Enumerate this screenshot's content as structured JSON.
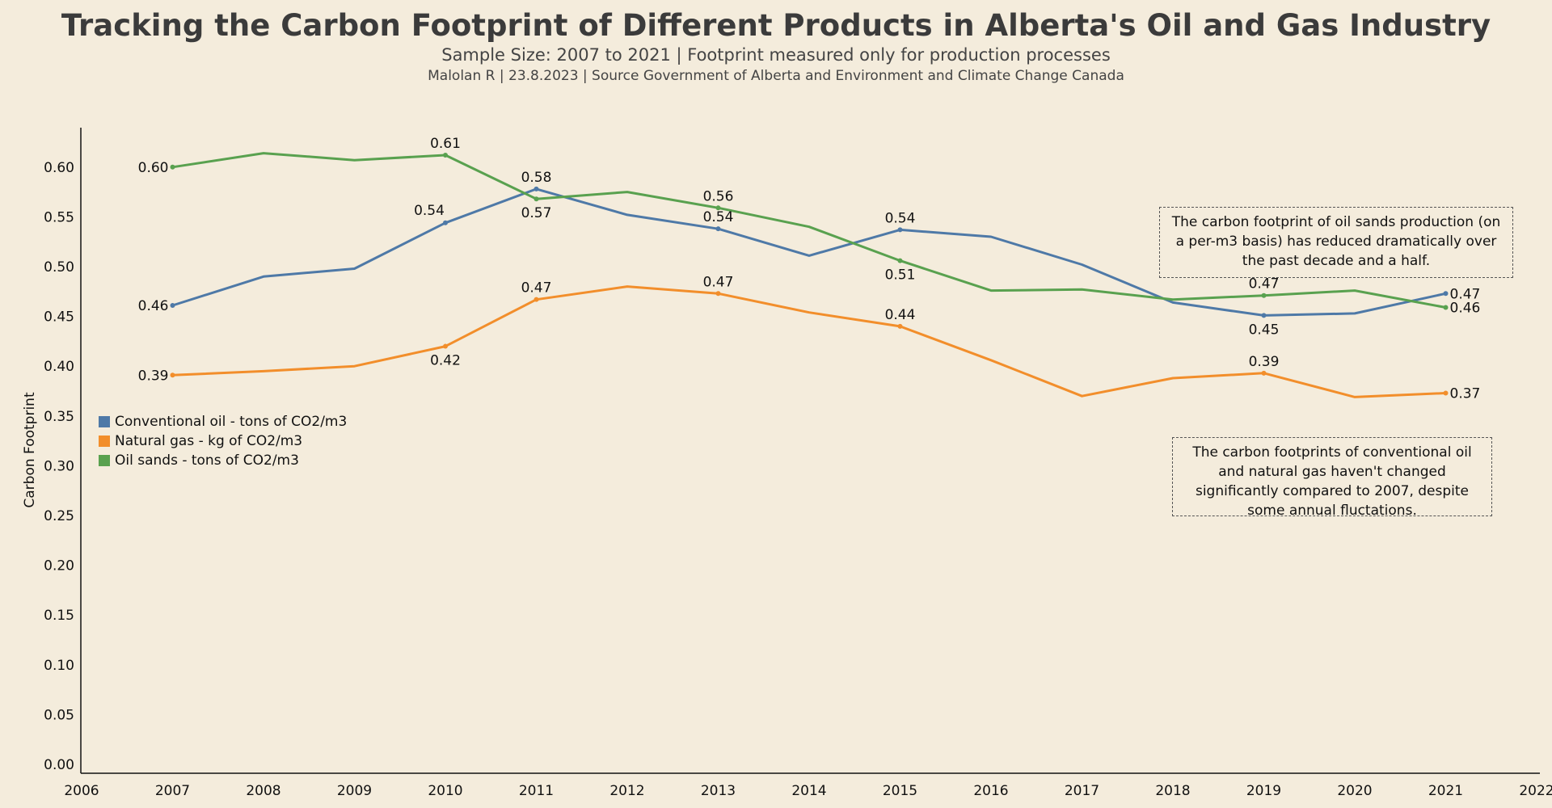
{
  "header": {
    "title": "Tracking the Carbon Footprint of Different Products in Alberta's Oil and Gas Industry",
    "subtitle": "Sample Size: 2007 to 2021 | Footprint measured only for production processes",
    "byline": "Malolan R | 23.8.2023 | Source Government of Alberta and Environment and Climate Change Canada"
  },
  "annotations": {
    "oil_sands_note": "The carbon footprint of oil sands production (on a per-m3 basis) has reduced dramatically over the past decade and a half.",
    "conventional_gas_note": "The carbon footprints of conventional oil and natural gas haven't changed significantly compared to 2007, despite some annual fluctations."
  },
  "chart_data": {
    "type": "line",
    "title": "Tracking the Carbon Footprint of Different Products in Alberta's Oil and Gas Industry",
    "ylabel": "Carbon Footprint",
    "xlabel": "",
    "xlim": [
      2006,
      2022
    ],
    "ylim": [
      0.0,
      0.65
    ],
    "x_ticks": [
      2006,
      2007,
      2008,
      2009,
      2010,
      2011,
      2012,
      2013,
      2014,
      2015,
      2016,
      2017,
      2018,
      2019,
      2020,
      2021,
      2022
    ],
    "y_ticks": [
      0.0,
      0.05,
      0.1,
      0.15,
      0.2,
      0.25,
      0.3,
      0.35,
      0.4,
      0.45,
      0.5,
      0.55,
      0.6
    ],
    "grid": false,
    "legend_position": "left",
    "x": [
      2007,
      2008,
      2009,
      2010,
      2011,
      2012,
      2013,
      2014,
      2015,
      2016,
      2017,
      2018,
      2019,
      2020,
      2021
    ],
    "series": [
      {
        "name": "Conventional oil - tons of CO2/m3",
        "color": "#4e79a7",
        "values": [
          0.461,
          0.49,
          0.498,
          0.544,
          0.578,
          0.552,
          0.538,
          0.511,
          0.537,
          0.53,
          0.502,
          0.464,
          0.451,
          0.453,
          0.473
        ]
      },
      {
        "name": "Natural gas - kg of CO2/m3",
        "color": "#f28e2b",
        "values": [
          0.391,
          0.395,
          0.4,
          0.42,
          0.467,
          0.48,
          0.473,
          0.454,
          0.44,
          0.406,
          0.37,
          0.388,
          0.393,
          0.369,
          0.373
        ]
      },
      {
        "name": "Oil sands - tons of CO2/m3",
        "color": "#59a14f",
        "values": [
          0.6,
          0.614,
          0.607,
          0.612,
          0.568,
          0.575,
          0.559,
          0.54,
          0.506,
          0.476,
          0.477,
          0.467,
          0.471,
          0.476,
          0.459
        ]
      }
    ],
    "data_labels": [
      {
        "series": 0,
        "x": 2007,
        "text": "0.46",
        "pos": "left"
      },
      {
        "series": 0,
        "x": 2010,
        "text": "0.54",
        "pos": "above-left"
      },
      {
        "series": 0,
        "x": 2011,
        "text": "0.58",
        "pos": "above"
      },
      {
        "series": 0,
        "x": 2013,
        "text": "0.54",
        "pos": "above"
      },
      {
        "series": 0,
        "x": 2015,
        "text": "0.54",
        "pos": "above"
      },
      {
        "series": 0,
        "x": 2019,
        "text": "0.45",
        "pos": "below"
      },
      {
        "series": 0,
        "x": 2021,
        "text": "0.47",
        "pos": "right"
      },
      {
        "series": 1,
        "x": 2007,
        "text": "0.39",
        "pos": "left"
      },
      {
        "series": 1,
        "x": 2010,
        "text": "0.42",
        "pos": "below"
      },
      {
        "series": 1,
        "x": 2011,
        "text": "0.47",
        "pos": "above"
      },
      {
        "series": 1,
        "x": 2013,
        "text": "0.47",
        "pos": "above"
      },
      {
        "series": 1,
        "x": 2015,
        "text": "0.44",
        "pos": "above"
      },
      {
        "series": 1,
        "x": 2019,
        "text": "0.39",
        "pos": "above"
      },
      {
        "series": 1,
        "x": 2021,
        "text": "0.37",
        "pos": "right"
      },
      {
        "series": 2,
        "x": 2007,
        "text": "0.60",
        "pos": "left"
      },
      {
        "series": 2,
        "x": 2010,
        "text": "0.61",
        "pos": "above"
      },
      {
        "series": 2,
        "x": 2011,
        "text": "0.57",
        "pos": "below"
      },
      {
        "series": 2,
        "x": 2013,
        "text": "0.56",
        "pos": "above"
      },
      {
        "series": 2,
        "x": 2015,
        "text": "0.51",
        "pos": "below"
      },
      {
        "series": 2,
        "x": 2019,
        "text": "0.47",
        "pos": "above"
      },
      {
        "series": 2,
        "x": 2021,
        "text": "0.46",
        "pos": "right"
      }
    ]
  }
}
